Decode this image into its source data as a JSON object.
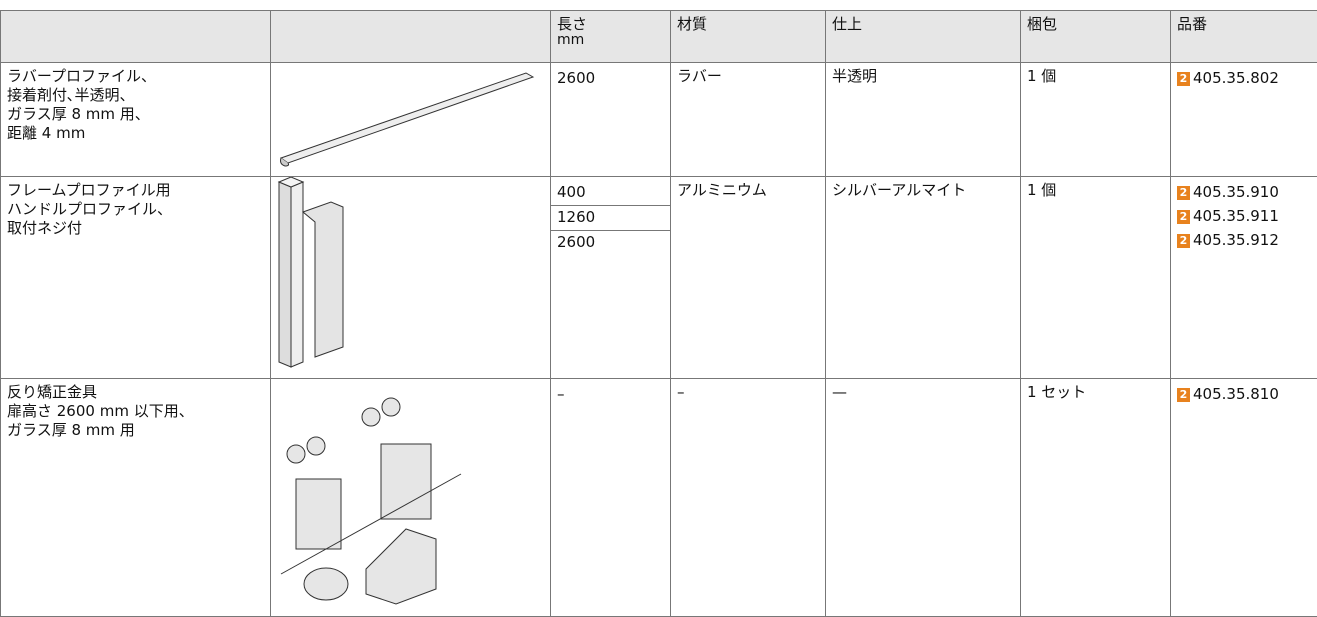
{
  "table": {
    "headers": {
      "length": "長さ",
      "length_unit": "mm",
      "material": "材質",
      "finish": "仕上",
      "pack": "梱包",
      "part_no": "品番"
    },
    "rows": [
      {
        "description": [
          "ラバープロファイル、",
          "接着剤付､半透明、",
          "ガラス厚 8 mm 用、",
          "距離 4 mm"
        ],
        "lengths": [
          "2600"
        ],
        "material": "ラバー",
        "finish": "半透明",
        "pack": "1 個",
        "parts": [
          {
            "badge": "2",
            "number": "405.35.802"
          }
        ]
      },
      {
        "description": [
          "フレームプロファイル用",
          "ハンドルプロファイル、",
          "取付ネジ付"
        ],
        "lengths": [
          "400",
          "1260",
          "2600"
        ],
        "material": "アルミニウム",
        "finish": "シルバーアルマイト",
        "pack": "1 個",
        "parts": [
          {
            "badge": "2",
            "number": "405.35.910"
          },
          {
            "badge": "2",
            "number": "405.35.911"
          },
          {
            "badge": "2",
            "number": "405.35.912"
          }
        ]
      },
      {
        "description": [
          "反り矯正金具",
          "扉高さ 2600 mm 以下用、",
          "ガラス厚 8 mm 用"
        ],
        "lengths": [
          "–"
        ],
        "material": "–",
        "finish": "—",
        "pack": "1 セット",
        "parts": [
          {
            "badge": "2",
            "number": "405.35.810"
          }
        ]
      }
    ]
  }
}
